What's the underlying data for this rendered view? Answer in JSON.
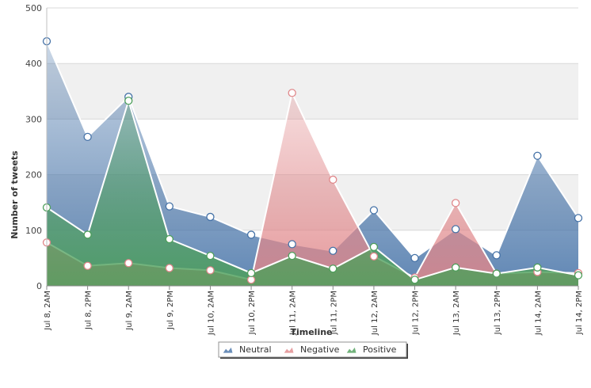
{
  "chart_data": {
    "type": "area",
    "xlabel": "Timeline",
    "ylabel": "Number of tweets",
    "ylim": [
      0,
      500
    ],
    "yticks": [
      0,
      100,
      200,
      300,
      400,
      500
    ],
    "categories": [
      "Jul 8, 2AM",
      "Jul 8, 2PM",
      "Jul 9, 2AM",
      "Jul 9, 2PM",
      "Jul 10, 2AM",
      "Jul 10, 2PM",
      "Jul 11, 2AM",
      "Jul 11, 2PM",
      "Jul 12, 2AM",
      "Jul 12, 2PM",
      "Jul 13, 2AM",
      "Jul 13, 2PM",
      "Jul 14, 2AM",
      "Jul 14, 2PM"
    ],
    "series": [
      {
        "name": "Neutral",
        "color": "#4572a7",
        "values": [
          440,
          268,
          340,
          143,
          124,
          92,
          75,
          63,
          136,
          50,
          102,
          55,
          234,
          122
        ]
      },
      {
        "name": "Negative",
        "color": "#e0878a",
        "values": [
          78,
          36,
          41,
          32,
          28,
          11,
          347,
          191,
          53,
          15,
          149,
          22,
          25,
          23
        ]
      },
      {
        "name": "Positive",
        "color": "#4d9f5a",
        "values": [
          141,
          92,
          333,
          84,
          54,
          23,
          54,
          31,
          70,
          11,
          33,
          22,
          33,
          19
        ]
      }
    ],
    "grid": "horizontal, alternating bands",
    "legend_position": "bottom-center"
  }
}
